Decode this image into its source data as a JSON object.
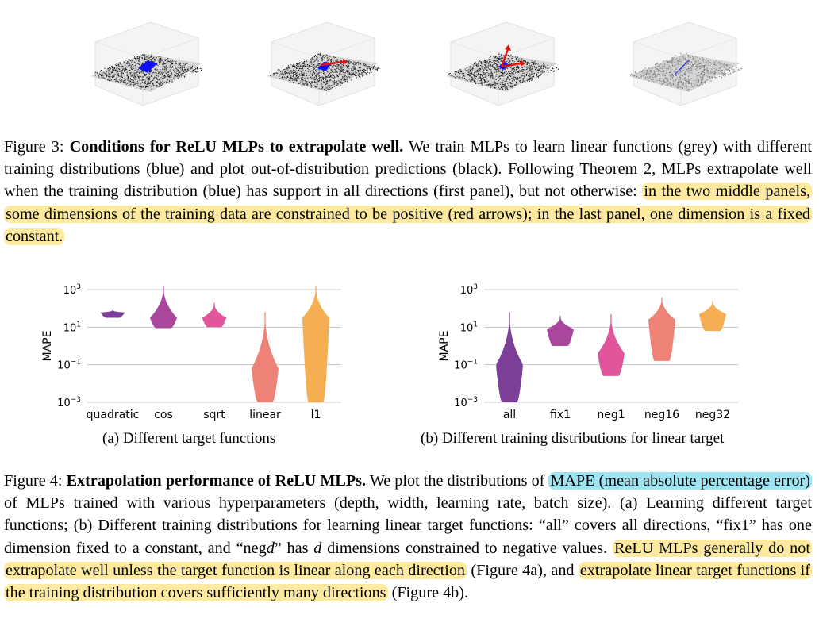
{
  "figure3": {
    "label": "Figure 3:",
    "bold_title": "Conditions for ReLU MLPs to extrapolate well.",
    "text_plain": " We train MLPs to learn linear functions (grey) with different training distributions (blue) and plot out-of-distribution predictions (black). Following Theorem 2, MLPs extrapolate well when the training distribution (blue) has support in all directions (first panel), but not otherwise: ",
    "text_highlight": "in the two middle panels, some dimensions of the training data are constrained to be positive (red arrows); in the last panel, one dimension is a fixed constant."
  },
  "panels_3d": [
    {
      "variant": "all"
    },
    {
      "variant": "one-arrow"
    },
    {
      "variant": "two-arrows"
    },
    {
      "variant": "fixed-plane"
    }
  ],
  "chart_data": [
    {
      "type": "violin",
      "ylabel": "MAPE",
      "yscale": "log",
      "ylim_exp": [
        -3,
        3
      ],
      "yticks": [
        {
          "exp": 3,
          "label": "10",
          "sup": "3"
        },
        {
          "exp": 1,
          "label": "10",
          "sup": "1"
        },
        {
          "exp": -1,
          "label": "10",
          "sup": "−1"
        },
        {
          "exp": -3,
          "label": "10",
          "sup": "−3"
        }
      ],
      "categories": [
        "quadratic",
        "cos",
        "sqrt",
        "linear",
        "l1"
      ],
      "colors": [
        "#7b3f98",
        "#a8479c",
        "#e0559c",
        "#ef8277",
        "#f6ae52"
      ],
      "violins": [
        {
          "min_exp": 1.5,
          "max_exp": 1.9,
          "peak_exp": 1.78,
          "maxw": 0.85
        },
        {
          "min_exp": 0.95,
          "max_exp": 3.2,
          "peak_exp": 1.5,
          "maxw": 0.95
        },
        {
          "min_exp": 1.0,
          "max_exp": 2.3,
          "peak_exp": 1.5,
          "maxw": 0.85
        },
        {
          "min_exp": -3.0,
          "max_exp": 1.8,
          "peak_exp": -1.2,
          "maxw": 0.95
        },
        {
          "min_exp": -3.0,
          "max_exp": 3.2,
          "peak_exp": 1.5,
          "maxw": 0.95
        }
      ],
      "caption": "(a) Different target functions"
    },
    {
      "type": "violin",
      "ylabel": "MAPE",
      "yscale": "log",
      "ylim_exp": [
        -3,
        3
      ],
      "yticks": [
        {
          "exp": 3,
          "label": "10",
          "sup": "3"
        },
        {
          "exp": 1,
          "label": "10",
          "sup": "1"
        },
        {
          "exp": -1,
          "label": "10",
          "sup": "−1"
        },
        {
          "exp": -3,
          "label": "10",
          "sup": "−3"
        }
      ],
      "categories": [
        "all",
        "fix1",
        "neg1",
        "neg16",
        "neg32"
      ],
      "colors": [
        "#7b3f98",
        "#a8479c",
        "#e0559c",
        "#ef8277",
        "#f6ae52"
      ],
      "violins": [
        {
          "min_exp": -3.0,
          "max_exp": 1.8,
          "peak_exp": -1.0,
          "maxw": 0.95
        },
        {
          "min_exp": 0.0,
          "max_exp": 1.6,
          "peak_exp": 0.9,
          "maxw": 0.95
        },
        {
          "min_exp": -1.6,
          "max_exp": 1.7,
          "peak_exp": -0.4,
          "maxw": 0.95
        },
        {
          "min_exp": -0.8,
          "max_exp": 2.6,
          "peak_exp": 1.4,
          "maxw": 0.95
        },
        {
          "min_exp": 0.8,
          "max_exp": 2.4,
          "peak_exp": 1.7,
          "maxw": 0.95
        }
      ],
      "caption": "(b) Different training distributions for linear target"
    }
  ],
  "figure4": {
    "label": "Figure 4:",
    "bold_title": "Extrapolation performance of ReLU MLPs.",
    "t1": " We plot the distributions of ",
    "hl_cyan": "MAPE (mean absolute percentage error)",
    "t2": " of MLPs trained with various hyperparameters (depth, width, learning rate, batch size). (a) Learning different target functions; (b) Different training distributions for learning linear target functions: “all” covers all directions, “fix1” has one dimension fixed to a constant, and “neg",
    "t2_var": "d",
    "t3": "” has ",
    "t3_var": "d",
    "t4": " dimensions constrained to negative values. ",
    "hl_y1": "ReLU MLPs generally do not extrapolate well unless the target function is linear along each direction",
    "t5": " (Figure 4a), and ",
    "hl_y2": "extrapolate linear target functions if the training distribution covers sufficiently many directions",
    "t6": " (Figure 4b)."
  }
}
